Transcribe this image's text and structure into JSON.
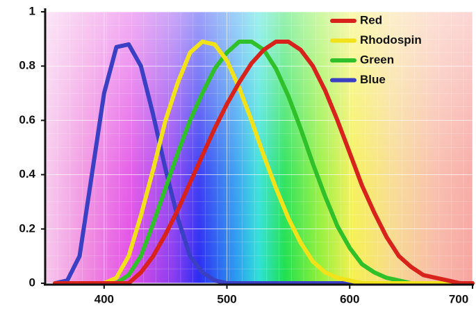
{
  "chart_data": {
    "type": "line",
    "x": [
      360,
      370,
      380,
      390,
      400,
      410,
      420,
      430,
      440,
      450,
      460,
      470,
      480,
      490,
      500,
      510,
      520,
      530,
      540,
      550,
      560,
      570,
      580,
      590,
      600,
      610,
      620,
      630,
      640,
      650,
      660,
      670,
      680,
      690,
      700
    ],
    "series": [
      {
        "name": "Red",
        "color": "#d8231c",
        "values": [
          0,
          0,
          0,
          0,
          0,
          0,
          0,
          0.04,
          0.1,
          0.18,
          0.27,
          0.37,
          0.47,
          0.57,
          0.66,
          0.74,
          0.81,
          0.86,
          0.89,
          0.89,
          0.86,
          0.8,
          0.71,
          0.6,
          0.48,
          0.36,
          0.26,
          0.17,
          0.1,
          0.06,
          0.03,
          0.02,
          0.01,
          0,
          0
        ]
      },
      {
        "name": "Rhodospin",
        "color": "#f2e21a",
        "values": [
          0,
          0,
          0,
          0,
          0,
          0.02,
          0.1,
          0.25,
          0.42,
          0.6,
          0.74,
          0.85,
          0.89,
          0.88,
          0.82,
          0.72,
          0.6,
          0.47,
          0.35,
          0.24,
          0.15,
          0.08,
          0.04,
          0.02,
          0.01,
          0,
          0,
          0,
          0,
          0,
          0,
          0,
          0,
          0,
          0
        ]
      },
      {
        "name": "Green",
        "color": "#2fc02a",
        "values": [
          0,
          0,
          0,
          0,
          0,
          0,
          0.03,
          0.1,
          0.22,
          0.35,
          0.48,
          0.6,
          0.7,
          0.79,
          0.85,
          0.89,
          0.89,
          0.86,
          0.79,
          0.69,
          0.57,
          0.44,
          0.32,
          0.21,
          0.13,
          0.07,
          0.04,
          0.02,
          0.01,
          0,
          0,
          0,
          0,
          0,
          0
        ]
      },
      {
        "name": "Blue",
        "color": "#3a3fc4",
        "values": [
          0,
          0.01,
          0.1,
          0.4,
          0.7,
          0.87,
          0.88,
          0.8,
          0.62,
          0.42,
          0.24,
          0.1,
          0.04,
          0.01,
          0,
          0,
          0,
          0,
          0,
          0,
          0,
          0,
          0,
          0,
          0,
          0,
          0,
          0,
          0,
          0,
          0,
          0,
          0,
          0,
          0
        ]
      }
    ],
    "xlim": [
      352,
      700
    ],
    "ylim": [
      0,
      1
    ],
    "xticks": [
      400,
      500,
      600,
      700
    ],
    "yticks": [
      0,
      0.2,
      0.4,
      0.6,
      0.8,
      1
    ],
    "grid": true,
    "legend": "upper right"
  }
}
